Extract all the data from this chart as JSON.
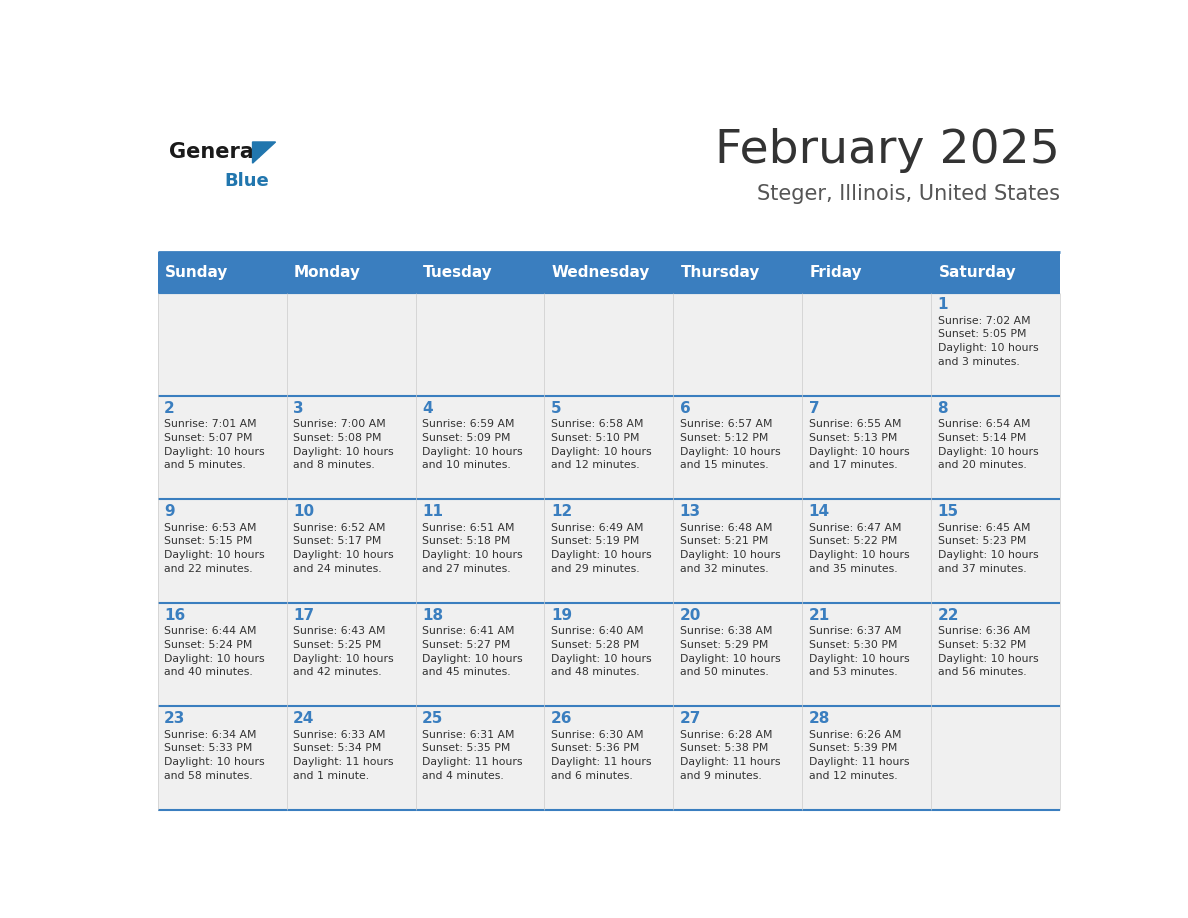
{
  "title": "February 2025",
  "subtitle": "Steger, Illinois, United States",
  "days_of_week": [
    "Sunday",
    "Monday",
    "Tuesday",
    "Wednesday",
    "Thursday",
    "Friday",
    "Saturday"
  ],
  "header_bg_color": "#3a7ebf",
  "header_text_color": "#ffffff",
  "cell_bg_color": "#f0f0f0",
  "title_color": "#333333",
  "subtitle_color": "#555555",
  "day_number_color": "#3a7ebf",
  "cell_text_color": "#333333",
  "divider_color": "#3a7ebf",
  "logo_text_color": "#1a1a1a",
  "logo_blue_color": "#2176ae",
  "calendar_data": [
    [
      {
        "day": null,
        "info": null
      },
      {
        "day": null,
        "info": null
      },
      {
        "day": null,
        "info": null
      },
      {
        "day": null,
        "info": null
      },
      {
        "day": null,
        "info": null
      },
      {
        "day": null,
        "info": null
      },
      {
        "day": 1,
        "info": "Sunrise: 7:02 AM\nSunset: 5:05 PM\nDaylight: 10 hours\nand 3 minutes."
      }
    ],
    [
      {
        "day": 2,
        "info": "Sunrise: 7:01 AM\nSunset: 5:07 PM\nDaylight: 10 hours\nand 5 minutes."
      },
      {
        "day": 3,
        "info": "Sunrise: 7:00 AM\nSunset: 5:08 PM\nDaylight: 10 hours\nand 8 minutes."
      },
      {
        "day": 4,
        "info": "Sunrise: 6:59 AM\nSunset: 5:09 PM\nDaylight: 10 hours\nand 10 minutes."
      },
      {
        "day": 5,
        "info": "Sunrise: 6:58 AM\nSunset: 5:10 PM\nDaylight: 10 hours\nand 12 minutes."
      },
      {
        "day": 6,
        "info": "Sunrise: 6:57 AM\nSunset: 5:12 PM\nDaylight: 10 hours\nand 15 minutes."
      },
      {
        "day": 7,
        "info": "Sunrise: 6:55 AM\nSunset: 5:13 PM\nDaylight: 10 hours\nand 17 minutes."
      },
      {
        "day": 8,
        "info": "Sunrise: 6:54 AM\nSunset: 5:14 PM\nDaylight: 10 hours\nand 20 minutes."
      }
    ],
    [
      {
        "day": 9,
        "info": "Sunrise: 6:53 AM\nSunset: 5:15 PM\nDaylight: 10 hours\nand 22 minutes."
      },
      {
        "day": 10,
        "info": "Sunrise: 6:52 AM\nSunset: 5:17 PM\nDaylight: 10 hours\nand 24 minutes."
      },
      {
        "day": 11,
        "info": "Sunrise: 6:51 AM\nSunset: 5:18 PM\nDaylight: 10 hours\nand 27 minutes."
      },
      {
        "day": 12,
        "info": "Sunrise: 6:49 AM\nSunset: 5:19 PM\nDaylight: 10 hours\nand 29 minutes."
      },
      {
        "day": 13,
        "info": "Sunrise: 6:48 AM\nSunset: 5:21 PM\nDaylight: 10 hours\nand 32 minutes."
      },
      {
        "day": 14,
        "info": "Sunrise: 6:47 AM\nSunset: 5:22 PM\nDaylight: 10 hours\nand 35 minutes."
      },
      {
        "day": 15,
        "info": "Sunrise: 6:45 AM\nSunset: 5:23 PM\nDaylight: 10 hours\nand 37 minutes."
      }
    ],
    [
      {
        "day": 16,
        "info": "Sunrise: 6:44 AM\nSunset: 5:24 PM\nDaylight: 10 hours\nand 40 minutes."
      },
      {
        "day": 17,
        "info": "Sunrise: 6:43 AM\nSunset: 5:25 PM\nDaylight: 10 hours\nand 42 minutes."
      },
      {
        "day": 18,
        "info": "Sunrise: 6:41 AM\nSunset: 5:27 PM\nDaylight: 10 hours\nand 45 minutes."
      },
      {
        "day": 19,
        "info": "Sunrise: 6:40 AM\nSunset: 5:28 PM\nDaylight: 10 hours\nand 48 minutes."
      },
      {
        "day": 20,
        "info": "Sunrise: 6:38 AM\nSunset: 5:29 PM\nDaylight: 10 hours\nand 50 minutes."
      },
      {
        "day": 21,
        "info": "Sunrise: 6:37 AM\nSunset: 5:30 PM\nDaylight: 10 hours\nand 53 minutes."
      },
      {
        "day": 22,
        "info": "Sunrise: 6:36 AM\nSunset: 5:32 PM\nDaylight: 10 hours\nand 56 minutes."
      }
    ],
    [
      {
        "day": 23,
        "info": "Sunrise: 6:34 AM\nSunset: 5:33 PM\nDaylight: 10 hours\nand 58 minutes."
      },
      {
        "day": 24,
        "info": "Sunrise: 6:33 AM\nSunset: 5:34 PM\nDaylight: 11 hours\nand 1 minute."
      },
      {
        "day": 25,
        "info": "Sunrise: 6:31 AM\nSunset: 5:35 PM\nDaylight: 11 hours\nand 4 minutes."
      },
      {
        "day": 26,
        "info": "Sunrise: 6:30 AM\nSunset: 5:36 PM\nDaylight: 11 hours\nand 6 minutes."
      },
      {
        "day": 27,
        "info": "Sunrise: 6:28 AM\nSunset: 5:38 PM\nDaylight: 11 hours\nand 9 minutes."
      },
      {
        "day": 28,
        "info": "Sunrise: 6:26 AM\nSunset: 5:39 PM\nDaylight: 11 hours\nand 12 minutes."
      },
      {
        "day": null,
        "info": null
      }
    ]
  ]
}
